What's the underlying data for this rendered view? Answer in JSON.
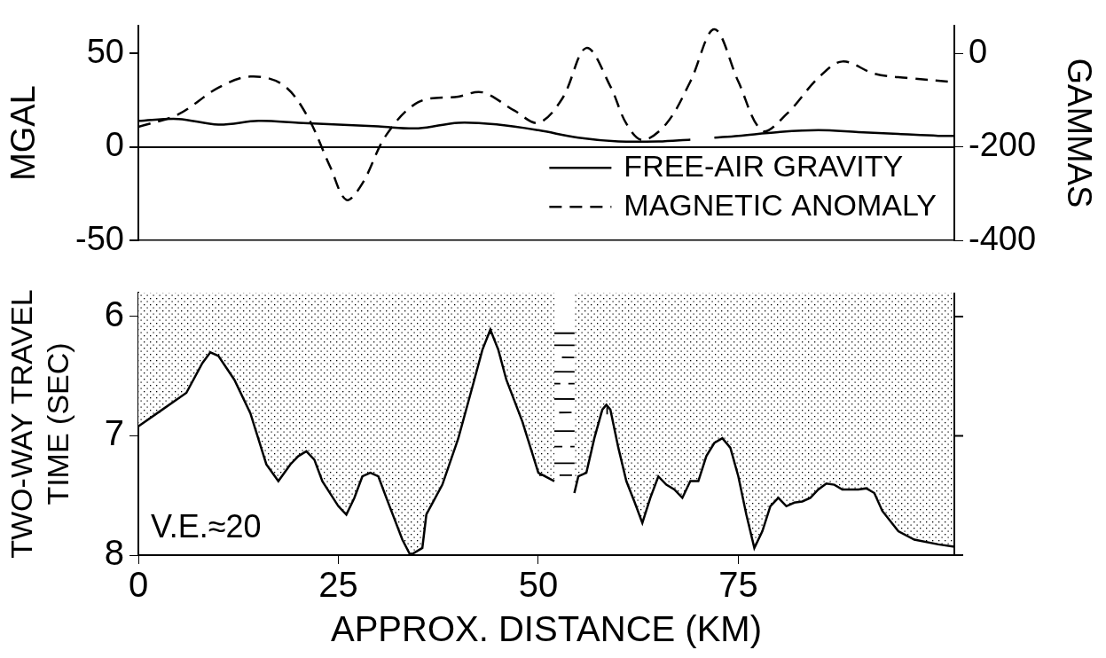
{
  "chart_data": [
    {
      "type": "line",
      "xlim": [
        0,
        102
      ],
      "ylim": [
        -50,
        65
      ],
      "yticks": [
        -50,
        0,
        50
      ],
      "y_label": "MGAL",
      "y2lim": [
        -400,
        60
      ],
      "y2ticks": [
        -400,
        -200,
        0
      ],
      "y2_label": "GAMMAS",
      "tick_labels": "y",
      "legend": "lower right",
      "series": [
        {
          "name": "FREE-AIR GRAVITY",
          "color": "#000000",
          "line_style": "solid",
          "x": [
            0,
            5,
            10,
            15,
            20,
            25,
            30,
            35,
            40,
            45,
            50,
            55,
            60,
            65,
            69,
            70,
            72,
            75,
            80,
            85,
            90,
            95,
            100,
            102
          ],
          "values": [
            14,
            15,
            12,
            14,
            13,
            12,
            11,
            10,
            13,
            12,
            9,
            5,
            3,
            3,
            4,
            null,
            5,
            6,
            8,
            9,
            8,
            7,
            6,
            6
          ]
        },
        {
          "name": "MAGNETIC ANOMALY",
          "color": "#000000",
          "line_style": "dashed",
          "axis": "y2",
          "x": [
            0,
            5,
            10,
            14,
            18,
            21,
            24,
            26,
            28,
            31,
            35,
            40,
            43,
            47,
            50,
            53,
            56,
            59,
            61,
            63,
            66,
            69,
            72,
            75,
            78,
            81,
            85,
            88,
            92,
            96,
            102
          ],
          "values": [
            -157,
            -130,
            -73,
            -49,
            -66,
            -130,
            -243,
            -313,
            -278,
            -174,
            -104,
            -92,
            -83,
            -122,
            -148,
            -96,
            12,
            -70,
            -150,
            -185,
            -150,
            -60,
            52,
            -60,
            -165,
            -130,
            -52,
            -17,
            -43,
            -52,
            -61
          ]
        }
      ]
    },
    {
      "type": "line",
      "xlim": [
        0,
        102
      ],
      "xticks": [
        0,
        25,
        50,
        75
      ],
      "x_label": "APPROX. DISTANCE (KM)",
      "ylim": [
        8,
        5.8
      ],
      "yticks": [
        6,
        7,
        8
      ],
      "y_label": [
        "TWO-WAY TRAVEL",
        "TIME (SEC)"
      ],
      "annotations": [
        "V.E.≈20"
      ],
      "series": [
        {
          "type": "area",
          "color": "#000000",
          "line_style": "solid",
          "x": [
            0,
            3,
            6,
            8,
            9,
            10,
            12,
            14,
            16,
            17.5,
            19,
            20,
            21,
            22,
            23,
            25,
            26,
            27,
            28,
            29,
            30,
            31,
            33,
            34,
            35.5,
            36,
            38,
            40,
            42,
            43,
            44,
            45,
            46,
            48,
            50,
            52,
            53,
            54.5,
            55,
            56,
            57,
            58,
            58.5,
            59,
            60,
            61,
            62,
            63,
            64,
            65,
            66,
            67,
            68,
            69,
            70,
            71,
            72,
            73,
            74,
            75,
            76,
            77,
            78,
            79,
            80,
            81,
            82,
            83,
            84,
            85,
            86,
            87,
            88,
            89,
            90,
            91,
            92,
            93,
            95,
            97,
            100,
            102
          ],
          "values": [
            6.92,
            6.78,
            6.64,
            6.39,
            6.3,
            6.33,
            6.53,
            6.81,
            7.24,
            7.38,
            7.24,
            7.17,
            7.13,
            7.2,
            7.38,
            7.59,
            7.66,
            7.52,
            7.34,
            7.31,
            7.34,
            7.52,
            7.87,
            8,
            7.94,
            7.66,
            7.41,
            7.02,
            6.53,
            6.28,
            6.11,
            6.28,
            6.53,
            6.88,
            7.31,
            7.38,
            null,
            7.48,
            7.34,
            7.31,
            7.02,
            6.78,
            6.74,
            6.78,
            7.1,
            7.38,
            7.55,
            7.73,
            7.52,
            7.34,
            7.41,
            7.45,
            7.52,
            7.38,
            7.38,
            7.17,
            7.06,
            7.02,
            7.1,
            7.34,
            7.66,
            7.94,
            7.8,
            7.59,
            7.52,
            7.59,
            7.56,
            7.55,
            7.52,
            7.45,
            7.4,
            7.41,
            7.45,
            7.45,
            7.45,
            7.44,
            7.48,
            7.63,
            7.8,
            7.87,
            7.91,
            7.93
          ]
        },
        {
          "color": "#000000",
          "line_style": "solid",
          "x": [
            0,
            102
          ],
          "values": [
            6.14,
            6.14
          ]
        },
        {
          "color": "#000000",
          "line_style": "solid",
          "x": [
            0,
            43.3,
            44,
            44.7,
            102
          ],
          "values": [
            6.25,
            6.24,
            null,
            6.24,
            6.25
          ]
        },
        {
          "color": "#000000",
          "line_style": "dashed",
          "x": [
            0,
            8.6,
            9,
            10,
            42.8,
            44,
            45.3,
            102
          ],
          "values": [
            6.36,
            6.33,
            null,
            6.33,
            6.34,
            null,
            6.34,
            6.36
          ]
        },
        {
          "color": "#000000",
          "line_style": "solid",
          "x": [
            0,
            7.6,
            9,
            11.2,
            41.8,
            44,
            45.7,
            102
          ],
          "values": [
            6.47,
            6.45,
            null,
            6.45,
            6.46,
            null,
            6.46,
            6.48
          ]
        },
        {
          "color": "#000000",
          "line_style": "dashed",
          "x": [
            0,
            6.7,
            9,
            12.3,
            41.9,
            44,
            46.1,
            102
          ],
          "values": [
            6.58,
            6.55,
            null,
            6.55,
            6.56,
            null,
            6.56,
            6.58
          ]
        },
        {
          "color": "#000000",
          "line_style": "solid",
          "x": [
            0,
            5.2,
            9,
            13.2,
            41.4,
            44,
            46.9,
            102
          ],
          "values": [
            6.7,
            6.68,
            null,
            6.68,
            6.69,
            null,
            6.69,
            6.7
          ]
        },
        {
          "color": "#000000",
          "line_style": "dashed",
          "x": [
            0,
            2.7,
            9,
            14,
            40.9,
            44,
            47.5,
            57.9,
            58.5,
            59.1,
            102
          ],
          "values": [
            6.84,
            6.8,
            null,
            6.8,
            6.81,
            null,
            6.81,
            6.8,
            null,
            6.8,
            6.83
          ]
        },
        {
          "color": "#000000",
          "line_style": "solid",
          "x": [
            14.7,
            40.3,
            44,
            48.3,
            57.3,
            58.5,
            59.5,
            102
          ],
          "values": [
            6.95,
            6.96,
            null,
            6.96,
            6.96,
            null,
            6.96,
            6.98
          ]
        },
        {
          "color": "#000000",
          "line_style": "dashed",
          "x": [
            15.3,
            39.7,
            44,
            48.9,
            56.8,
            58.5,
            59.9,
            71.8,
            73,
            73.8,
            102
          ],
          "values": [
            7.08,
            7.09,
            null,
            7.09,
            7.09,
            null,
            7.09,
            7.09,
            null,
            7.09,
            7.12
          ]
        },
        {
          "color": "#000000",
          "line_style": "solid",
          "x": [
            15.9,
            19.3,
            20.5,
            22.1,
            39,
            44,
            49.6,
            56.3,
            58.5,
            60.4,
            70.8,
            73,
            74.5,
            102
          ],
          "values": [
            7.22,
            7.22,
            null,
            7.22,
            7.23,
            null,
            7.23,
            7.23,
            null,
            7.23,
            7.23,
            null,
            7.23,
            7.26
          ]
        },
        {
          "color": "#000000",
          "line_style": "dashed",
          "x": [
            22.7,
            27.9,
            29,
            30.1,
            38.4,
            44,
            50.1,
            55,
            57,
            60.9,
            70.2,
            72,
            74.9,
            102
          ],
          "values": [
            7.33,
            7.33,
            null,
            7.33,
            7.33,
            null,
            7.33,
            7.33,
            null,
            7.33,
            7.33,
            null,
            7.33,
            7.36
          ]
        },
        {
          "color": "#000000",
          "line_style": "solid",
          "x": [
            30.6,
            37.7,
            50,
            75.3,
            84.7,
            86,
            92.2,
            102
          ],
          "values": [
            7.45,
            7.45,
            null,
            7.46,
            7.46,
            null,
            7.5,
            7.52
          ]
        },
        {
          "color": "#000000",
          "line_style": "solid",
          "x": [
            58.6,
            58.6
          ],
          "values": [
            6.55,
            6.82
          ]
        }
      ]
    }
  ]
}
